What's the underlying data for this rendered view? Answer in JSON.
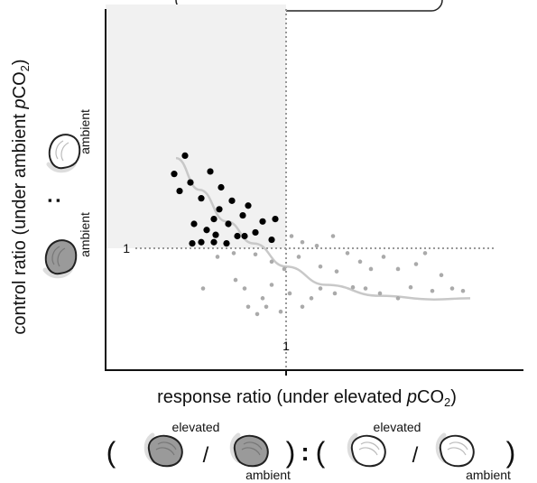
{
  "chart_data": {
    "type": "scatter",
    "xlabel": [
      "response ratio (under elevated ",
      "p",
      "CO",
      "2",
      ")"
    ],
    "ylabel": [
      "control ratio (under ambient ",
      "p",
      "CO",
      "2",
      ")"
    ],
    "xlim": [
      0,
      2.3
    ],
    "ylim": [
      0,
      3
    ],
    "xticks": [
      1
    ],
    "yticks": [
      1
    ],
    "shade_color": "#f1f1f1",
    "series": [
      {
        "color": "#000000",
        "x": [
          0.44,
          0.38,
          0.47,
          0.58,
          0.41,
          0.53,
          0.64,
          0.7,
          0.79,
          0.63,
          0.76,
          0.6,
          0.68,
          0.87,
          0.94,
          0.49,
          0.56,
          0.73,
          0.83,
          0.92,
          0.53,
          0.6,
          0.48,
          0.67,
          0.77,
          0.61
        ],
        "values": [
          1.76,
          1.61,
          1.54,
          1.63,
          1.47,
          1.41,
          1.5,
          1.39,
          1.35,
          1.32,
          1.27,
          1.24,
          1.2,
          1.22,
          1.24,
          1.2,
          1.15,
          1.1,
          1.13,
          1.07,
          1.05,
          1.05,
          1.04,
          1.04,
          1.1,
          1.11
        ]
      },
      {
        "color": "#aaaaaa",
        "x": [
          0.62,
          0.71,
          0.83,
          0.92,
          0.99,
          1.03,
          1.09,
          1.17,
          1.26,
          1.07,
          1.19,
          1.28,
          1.34,
          1.41,
          1.47,
          1.54,
          1.62,
          1.72,
          1.77,
          1.86,
          1.92,
          1.98,
          1.81,
          1.69,
          1.62,
          1.52,
          1.44,
          1.37,
          1.27,
          1.19,
          1.14,
          1.09,
          1.02,
          0.92,
          0.87,
          0.84,
          0.89,
          0.77,
          0.72,
          0.54,
          0.79,
          0.97
        ],
        "values": [
          0.93,
          0.96,
          0.95,
          0.89,
          0.83,
          1.1,
          1.05,
          1.02,
          1.1,
          0.93,
          0.85,
          0.81,
          0.96,
          0.89,
          0.83,
          0.93,
          0.83,
          0.87,
          0.96,
          0.78,
          0.67,
          0.65,
          0.65,
          0.68,
          0.59,
          0.63,
          0.67,
          0.68,
          0.63,
          0.67,
          0.59,
          0.52,
          0.63,
          0.7,
          0.59,
          0.46,
          0.52,
          0.67,
          0.74,
          0.67,
          0.52,
          0.48
        ]
      }
    ],
    "fit": {
      "color": "#c8c8c8",
      "x": [
        0.39,
        0.52,
        0.67,
        0.82,
        1.0,
        1.22,
        1.52,
        1.82,
        2.02
      ],
      "values": [
        1.74,
        1.48,
        1.22,
        1.04,
        0.85,
        0.7,
        0.61,
        0.58,
        0.59
      ]
    },
    "annotations": {
      "bottom": [
        "(",
        "elevated",
        "/",
        "ambient",
        ")",
        ":",
        "(",
        "elevated",
        "/",
        "ambient",
        ")"
      ],
      "left": [
        "ambient",
        ":",
        "ambient"
      ]
    }
  }
}
